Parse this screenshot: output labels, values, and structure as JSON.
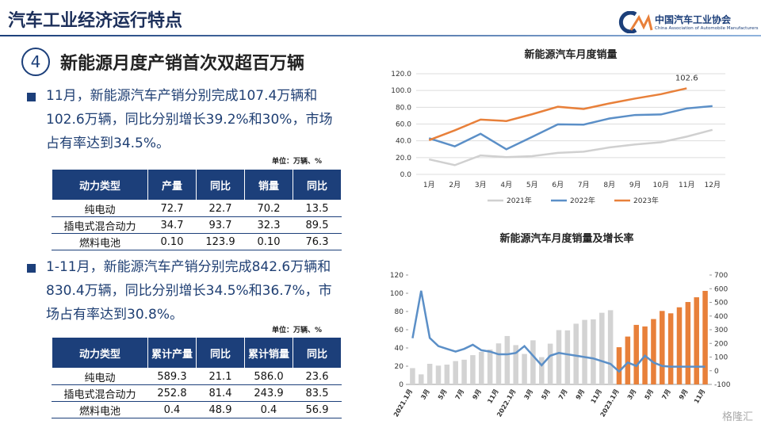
{
  "header": {
    "title": "汽车工业经济运行特点",
    "org": "中国汽车工业协会",
    "org_en": "China Association of Automobile Manufacturers"
  },
  "section": {
    "number": "4",
    "heading": "新能源月度产销首次双超百万辆"
  },
  "bullets": [
    {
      "text": "11月，新能源汽车产销分别完成107.4万辆和102.6万辆，同比分别增长39.2%和30%，市场占有率达到34.5%。",
      "table": {
        "unit": "单位：万辆、%",
        "header": [
          "动力类型",
          "产量",
          "同比",
          "销量",
          "同比"
        ],
        "rows": [
          [
            "纯电动",
            "72.7",
            "22.7",
            "70.2",
            "13.5"
          ],
          [
            "插电式混合动力",
            "34.7",
            "93.7",
            "32.3",
            "89.5"
          ],
          [
            "燃料电池",
            "0.10",
            "123.9",
            "0.10",
            "76.3"
          ]
        ]
      }
    },
    {
      "text": "1-11月，新能源汽车产销分别完成842.6万辆和830.4万辆，同比分别增长34.5%和36.7%，市场占有率达到30.8%。",
      "table": {
        "unit": "单位：万辆、%",
        "header": [
          "动力类型",
          "累计产量",
          "同比",
          "累计销量",
          "同比"
        ],
        "rows": [
          [
            "纯电动",
            "589.3",
            "21.1",
            "586.0",
            "23.6"
          ],
          [
            "插电式混合动力",
            "252.8",
            "81.4",
            "243.9",
            "83.5"
          ],
          [
            "燃料电池",
            "0.4",
            "48.9",
            "0.4",
            "56.9"
          ]
        ]
      }
    }
  ],
  "watermark": "格隆汇",
  "chart_data": [
    {
      "type": "line",
      "title": "新能源汽车月度销量",
      "categories": [
        "1月",
        "2月",
        "3月",
        "4月",
        "5月",
        "6月",
        "7月",
        "8月",
        "9月",
        "10月",
        "11月",
        "12月"
      ],
      "series": [
        {
          "name": "2021年",
          "color": "#d0d0d0",
          "values": [
            17.9,
            11.0,
            22.6,
            20.6,
            21.7,
            25.6,
            27.1,
            32.1,
            35.7,
            38.3,
            45.0,
            53.1
          ]
        },
        {
          "name": "2022年",
          "color": "#5b8fc7",
          "values": [
            43.1,
            33.4,
            48.4,
            29.9,
            44.7,
            59.6,
            59.3,
            66.6,
            70.8,
            71.4,
            78.6,
            81.4
          ]
        },
        {
          "name": "2023年",
          "color": "#e8803a",
          "values": [
            40.8,
            52.5,
            65.3,
            63.6,
            71.7,
            80.6,
            78.0,
            84.6,
            90.4,
            95.6,
            102.6,
            null
          ]
        }
      ],
      "annotations": [
        "102.6"
      ],
      "ylim": [
        0,
        120
      ],
      "yticks": [
        {
          "value": 0,
          "label": "0.0"
        },
        {
          "value": 20,
          "label": "20.0"
        },
        {
          "value": 40,
          "label": "40.0"
        },
        {
          "value": 60,
          "label": "60.0"
        },
        {
          "value": 80,
          "label": "80.0"
        },
        {
          "value": 100,
          "label": "100.0"
        },
        {
          "value": 120,
          "label": "120.0"
        }
      ],
      "grid": true,
      "legend": "bottom"
    },
    {
      "type": "combo",
      "title": "新能源汽车月度销量及增长率",
      "categories": [
        "2021.1月",
        null,
        "3月",
        null,
        "5月",
        null,
        "7月",
        null,
        "9月",
        null,
        "11月",
        null,
        "2022.1月",
        null,
        "3月",
        null,
        "5月",
        null,
        "7月",
        null,
        "9月",
        null,
        "11月",
        null,
        "2023.1月",
        null,
        "3月",
        null,
        "5月",
        null,
        "7月",
        null,
        "9月",
        null,
        "11月"
      ],
      "series": [
        {
          "type": "bar",
          "color": "#d3d3d3",
          "values": [
            17.9,
            11.0,
            22.6,
            20.6,
            21.7,
            25.6,
            27.1,
            32.1,
            35.7,
            38.3,
            45.0,
            53.1,
            43.1,
            33.4,
            48.4,
            29.9,
            44.7,
            59.6,
            59.3,
            66.6,
            70.8,
            71.4,
            78.6,
            81.4,
            null,
            null,
            null,
            null,
            null,
            null,
            null,
            null,
            null,
            null,
            null
          ]
        },
        {
          "type": "bar",
          "color": "#e8803a",
          "values": [
            null,
            null,
            null,
            null,
            null,
            null,
            null,
            null,
            null,
            null,
            null,
            null,
            null,
            null,
            null,
            null,
            null,
            null,
            null,
            null,
            null,
            null,
            null,
            null,
            40.8,
            52.5,
            65.3,
            63.6,
            71.7,
            80.6,
            78.0,
            84.6,
            90.4,
            95.6,
            102.6
          ]
        },
        {
          "type": "line",
          "axis": "y2",
          "color": "#5b8fc7",
          "values": [
            238,
            585,
            240,
            180,
            160,
            140,
            160,
            190,
            150,
            140,
            120,
            120,
            130,
            180,
            110,
            40,
            110,
            130,
            120,
            110,
            100,
            90,
            70,
            50,
            -6,
            60,
            35,
            110,
            60,
            35,
            30,
            30,
            30,
            30,
            30
          ]
        }
      ],
      "ylim": [
        0,
        120
      ],
      "yticks": [
        0,
        20,
        40,
        60,
        80,
        100,
        120
      ],
      "y2lim": [
        -100,
        700
      ],
      "y2ticks": [
        -100,
        0,
        100,
        200,
        300,
        400,
        500,
        600,
        700
      ]
    }
  ]
}
